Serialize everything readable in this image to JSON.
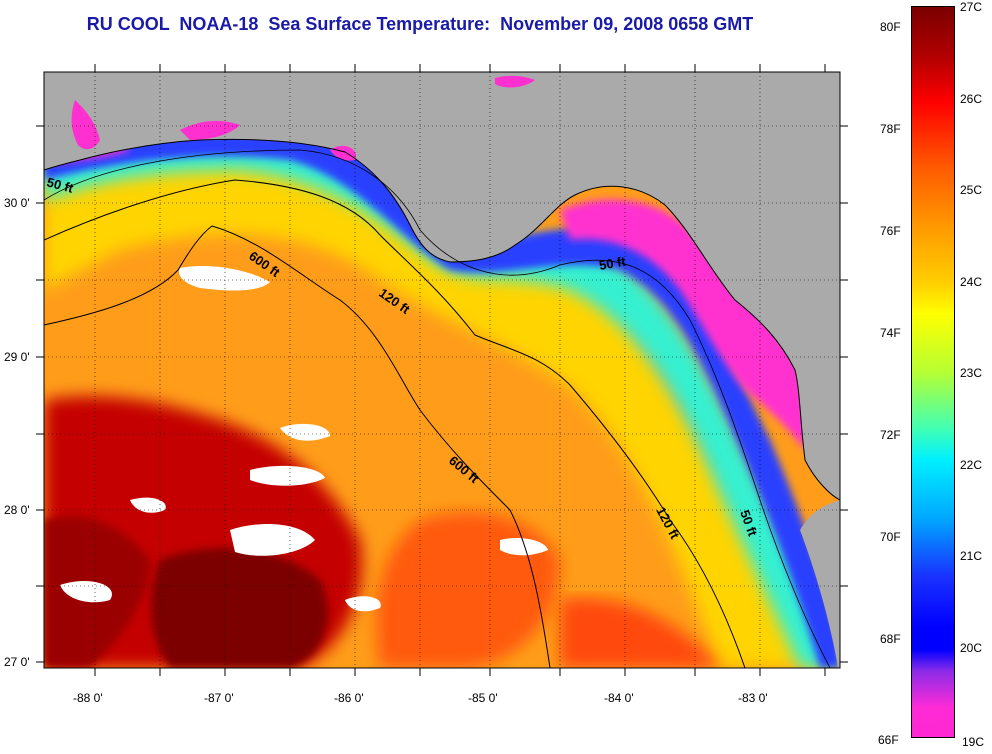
{
  "title": "RU COOL  NOAA-18  Sea Surface Temperature:  November 09, 2008 0658 GMT",
  "lat_labels": [
    "30 0'",
    "29 0'",
    "28 0'",
    "27 0'"
  ],
  "lon_labels": [
    "-88 0'",
    "-87 0'",
    "-86 0'",
    "-85 0'",
    "-84 0'",
    "-83 0'"
  ],
  "contours": {
    "c600a": "600 ft",
    "c120a": "120 ft",
    "c50a": "50 ft",
    "c50b": "50 ft",
    "c600b": "600 ft",
    "c120b": "120 ft",
    "c50c": "50 ft"
  },
  "colorbar": {
    "fahrenheit": [
      "80F",
      "78F",
      "76F",
      "74F",
      "72F",
      "70F",
      "68F",
      "66F"
    ],
    "celsius": [
      "27C",
      "26C",
      "25C",
      "24C",
      "23C",
      "22C",
      "21C",
      "20C",
      "19C"
    ]
  },
  "colors": {
    "land": "#aaaaaa",
    "cold": "#ff30d0",
    "warm": "#8b0000",
    "title": "#1a1aa8"
  }
}
